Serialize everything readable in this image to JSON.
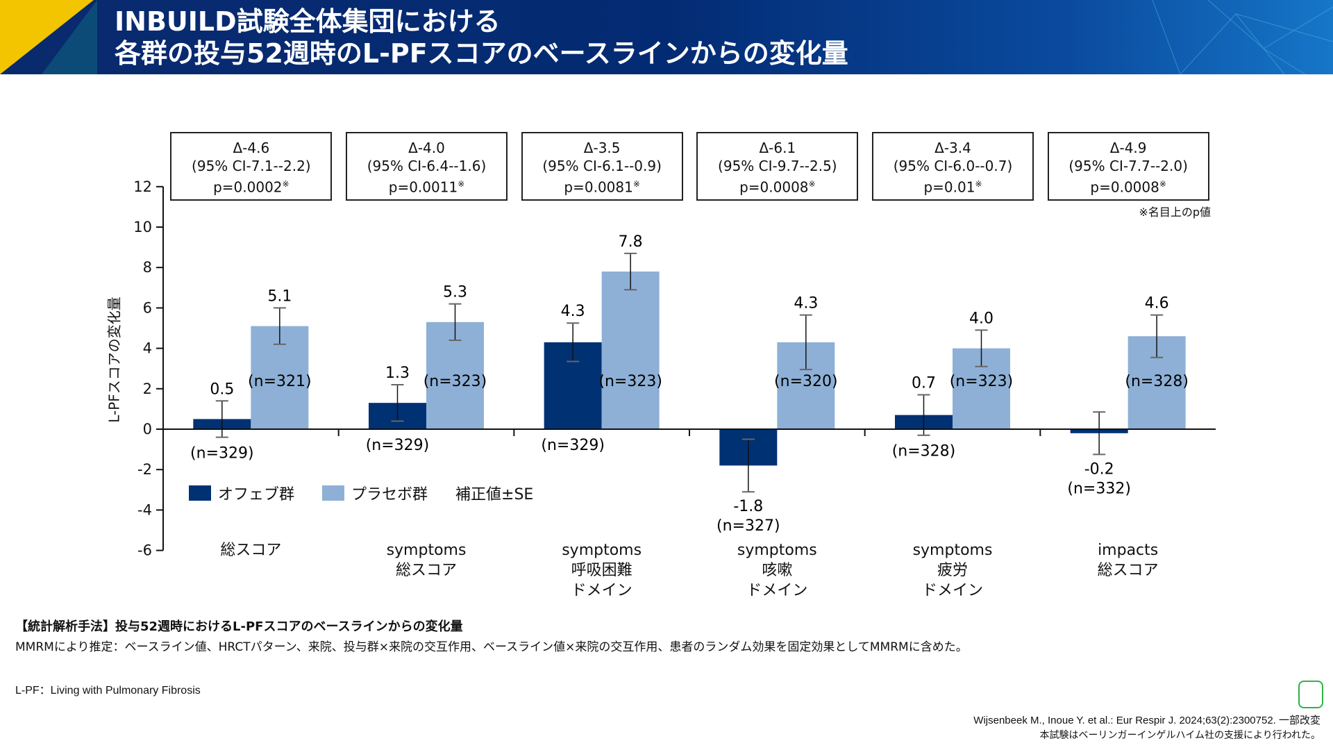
{
  "header": {
    "title_line1": "INBUILD試験全体集団における",
    "title_line2": "各群の投与52週時のL-PFスコアのベースラインからの変化量"
  },
  "chart_data": {
    "type": "bar",
    "ylabel": "L-PFスコアの変化量",
    "ylim": [
      -6,
      12
    ],
    "yticks": [
      12,
      10,
      8,
      6,
      4,
      2,
      0,
      -2,
      -4,
      -6
    ],
    "categories": [
      [
        "総スコア"
      ],
      [
        "symptoms",
        "総スコア"
      ],
      [
        "symptoms",
        "呼吸困難",
        "ドメイン"
      ],
      [
        "symptoms",
        "咳嗽",
        "ドメイン"
      ],
      [
        "symptoms",
        "疲労",
        "ドメイン"
      ],
      [
        "impacts",
        "総スコア"
      ]
    ],
    "series": [
      {
        "name": "オフェブ群",
        "color": "#003173",
        "values": [
          0.5,
          1.3,
          4.3,
          -1.8,
          0.7,
          -0.2
        ],
        "se": [
          0.9,
          0.9,
          0.95,
          1.3,
          1.0,
          1.05
        ],
        "value_labels": [
          "0.5",
          "1.3",
          "4.3",
          "-1.8",
          "0.7",
          "-0.2"
        ],
        "n": [
          "(n=329)",
          "(n=329)",
          "(n=329)",
          "(n=327)",
          "(n=328)",
          "(n=332)"
        ]
      },
      {
        "name": "プラセボ群",
        "color": "#8eb0d6",
        "values": [
          5.1,
          5.3,
          7.8,
          4.3,
          4.0,
          4.6
        ],
        "se": [
          0.9,
          0.9,
          0.9,
          1.35,
          0.9,
          1.05
        ],
        "value_labels": [
          "5.1",
          "5.3",
          "7.8",
          "4.3",
          "4.0",
          "4.6"
        ],
        "n": [
          "(n=321)",
          "(n=323)",
          "(n=323)",
          "(n=320)",
          "(n=323)",
          "(n=328)"
        ]
      }
    ],
    "legend_note": "補正値±SE",
    "annotations": [
      {
        "delta": "Δ-4.6",
        "ci": "(95% CI-7.1--2.2)",
        "p": "p=0.0002",
        "mark": "※"
      },
      {
        "delta": "Δ-4.0",
        "ci": "(95% CI-6.4--1.6)",
        "p": "p=0.0011",
        "mark": "※"
      },
      {
        "delta": "Δ-3.5",
        "ci": "(95% CI-6.1--0.9)",
        "p": "p=0.0081",
        "mark": "※"
      },
      {
        "delta": "Δ-6.1",
        "ci": "(95% CI-9.7--2.5)",
        "p": "p=0.0008",
        "mark": "※"
      },
      {
        "delta": "Δ-3.4",
        "ci": "(95% CI-6.0--0.7)",
        "p": "p=0.01",
        "mark": "※"
      },
      {
        "delta": "Δ-4.9",
        "ci": "(95% CI-7.7--2.0)",
        "p": "p=0.0008",
        "mark": "※"
      }
    ],
    "p_note": "※名目上のp値",
    "legend_position": "bottom-left",
    "grid": false
  },
  "footer": {
    "method_title": "【統計解析手法】投与52週時におけるL-PFスコアのベースラインからの変化量",
    "method_text": "MMRMにより推定：ベースライン値、HRCTパターン、来院、投与群×来院の交互作用、ベースライン値×来院の交互作用、患者のランダム効果を固定効果としてMMRMに含めた。",
    "abbrev": "L-PF：Living with Pulmonary Fibrosis",
    "citation": "Wijsenbeek M., Inoue Y. et al.: Eur Respir J. 2024;63(2):2300752. 一部改変",
    "support": "本試験はベーリンガーインゲルハイム社の支援により行われた。",
    "logo": "PC"
  }
}
